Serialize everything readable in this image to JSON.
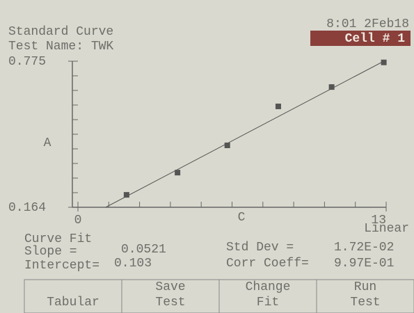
{
  "header": {
    "title": "Standard Curve",
    "test_name": "Test Name: TWK",
    "datetime": "8:01 2Feb18",
    "cell": "Cell # 1"
  },
  "chart_data": {
    "type": "scatter",
    "x_label": "C",
    "y_label": "A",
    "x": [
      2.05,
      4.2,
      6.3,
      8.45,
      10.7,
      12.9
    ],
    "values": [
      0.216,
      0.309,
      0.423,
      0.586,
      0.667,
      0.77
    ],
    "xlim": [
      0,
      13
    ],
    "xticks": [
      0,
      13
    ],
    "ylim": [
      0.164,
      0.775
    ],
    "yticks": [
      0.164,
      0.775
    ],
    "fit": {
      "slope": 0.0521,
      "intercept": 0.103
    },
    "color": "#555555"
  },
  "stats": {
    "curve_fit_label": "Curve Fit",
    "curve_fit": "Linear",
    "slope_label": "Slope     =",
    "intercept_label": "Intercept=",
    "std_dev_label": "Std Dev    =",
    "std_dev": "1.72E-02",
    "corr_label": "Corr Coeff=",
    "corr": "9.97E-01"
  },
  "buttons": [
    [
      "Tabular"
    ],
    [
      "Save",
      "Test"
    ],
    [
      "Change",
      "Fit"
    ],
    [
      "Run",
      "Test"
    ]
  ]
}
